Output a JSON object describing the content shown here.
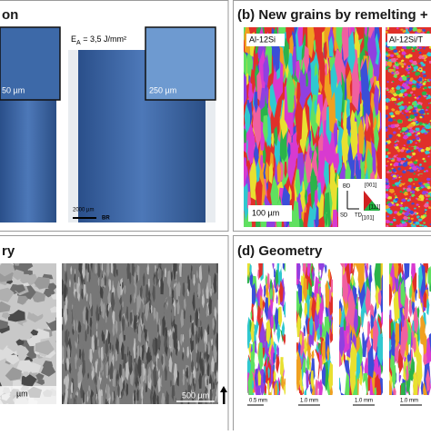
{
  "panel_a": {
    "title": "on",
    "energy_symbol": "E",
    "energy_subscript": "A",
    "energy_value": " = 3,5 J/mm²",
    "scale_left": "50 µm",
    "scale_inset": "250 µm",
    "scale_main": "2000 µm",
    "direction": "BR"
  },
  "panel_b": {
    "title": "(b) New grains by remelting +",
    "label_left": "Al-12Si",
    "label_right": "Al-12Si/T",
    "scale": "100 µm",
    "axes": [
      "BD",
      "SD",
      "TD"
    ],
    "orientations": [
      "[001]",
      "[111]",
      "[101]"
    ]
  },
  "panel_c": {
    "title": "ry",
    "scale_left": "µm",
    "scale_right": "500 µm"
  },
  "panel_d": {
    "title": "(d) Geometry",
    "scales": [
      "0.5 mm",
      "1.0 mm",
      "1.0 mm",
      "1.0 mm"
    ]
  }
}
